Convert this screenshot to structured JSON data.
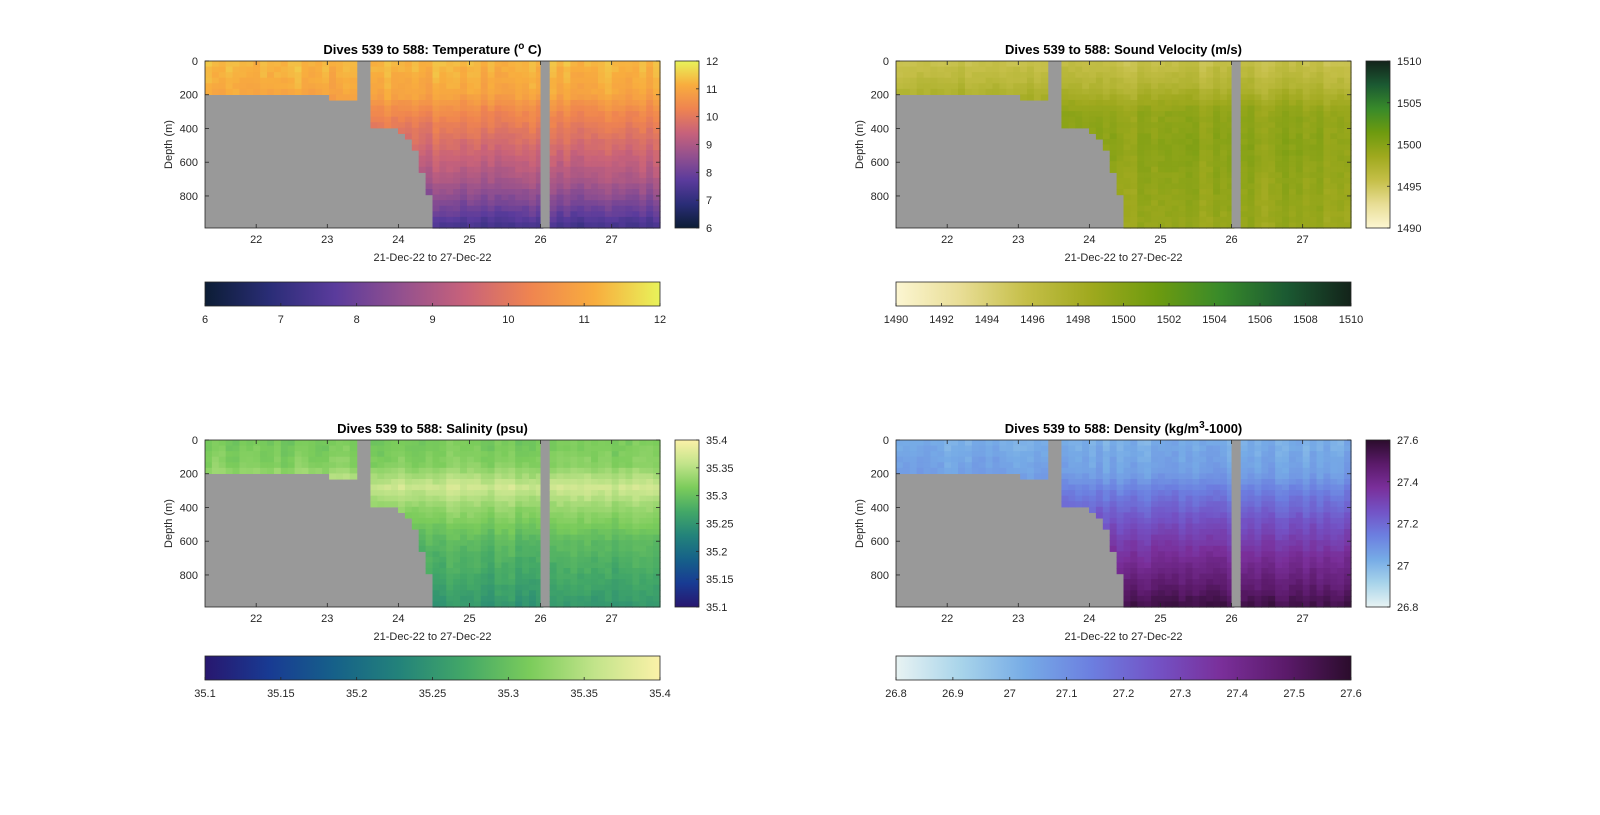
{
  "chart_data": [
    {
      "type": "heatmap",
      "id": "temp",
      "title": "Dives 539 to 588: Temperature (",
      "title_unit_sup": "o",
      "title_tail": " C)",
      "xlabel": "21-Dec-22 to 27-Dec-22",
      "ylabel": "Depth (m)",
      "x_ticks": [
        "22",
        "23",
        "24",
        "25",
        "26",
        "27"
      ],
      "x_tick_values": [
        22,
        23,
        24,
        25,
        26,
        27
      ],
      "xlim": [
        21.28,
        27.68
      ],
      "y_ticks": [
        "0",
        "200",
        "400",
        "600",
        "800"
      ],
      "y_tick_values": [
        0,
        200,
        400,
        600,
        800
      ],
      "ylim": [
        0,
        990
      ],
      "clim": [
        6,
        12
      ],
      "side_cbar_ticks": [
        "12",
        "11",
        "10",
        "9",
        "8",
        "7",
        "6"
      ],
      "side_cbar_values": [
        12,
        11,
        10,
        9,
        8,
        7,
        6
      ],
      "bottom_cbar_ticks": [
        "6",
        "7",
        "8",
        "9",
        "10",
        "11",
        "12"
      ],
      "bottom_cbar_values": [
        6,
        7,
        8,
        9,
        10,
        11,
        12
      ],
      "colormap": [
        "#0c1d35",
        "#2a2d77",
        "#5a3b9c",
        "#92508f",
        "#c8627a",
        "#ef8450",
        "#f8ad3e",
        "#e8f35a"
      ],
      "profile": [
        [
          0,
          11.3
        ],
        [
          200,
          11.0
        ],
        [
          300,
          10.4
        ],
        [
          500,
          9.7
        ],
        [
          700,
          9.0
        ],
        [
          850,
          8.2
        ],
        [
          990,
          7.3
        ]
      ]
    },
    {
      "type": "heatmap",
      "id": "sv",
      "title": "Dives 539 to 588: Sound Velocity (m/s)",
      "xlabel": "21-Dec-22 to 27-Dec-22",
      "ylabel": "Depth (m)",
      "x_ticks": [
        "22",
        "23",
        "24",
        "25",
        "26",
        "27"
      ],
      "x_tick_values": [
        22,
        23,
        24,
        25,
        26,
        27
      ],
      "xlim": [
        21.28,
        27.68
      ],
      "y_ticks": [
        "0",
        "200",
        "400",
        "600",
        "800"
      ],
      "y_tick_values": [
        0,
        200,
        400,
        600,
        800
      ],
      "ylim": [
        0,
        990
      ],
      "clim": [
        1490,
        1510
      ],
      "side_cbar_ticks": [
        "1510",
        "1505",
        "1500",
        "1495",
        "1490"
      ],
      "side_cbar_values": [
        1510,
        1505,
        1500,
        1495,
        1490
      ],
      "bottom_cbar_ticks": [
        "1490",
        "1492",
        "1494",
        "1496",
        "1498",
        "1500",
        "1502",
        "1504",
        "1506",
        "1508",
        "1510"
      ],
      "bottom_cbar_values": [
        1490,
        1492,
        1494,
        1496,
        1498,
        1500,
        1502,
        1504,
        1506,
        1508,
        1510
      ],
      "colormap": [
        "#fcf6d2",
        "#e8dd95",
        "#c5bf48",
        "#9fa91e",
        "#6e9b0f",
        "#388a2a",
        "#1b5a32",
        "#13231a"
      ],
      "profile": [
        [
          0,
          1495.5
        ],
        [
          150,
          1497.0
        ],
        [
          300,
          1499.2
        ],
        [
          500,
          1499.6
        ],
        [
          700,
          1499.2
        ],
        [
          990,
          1498.8
        ]
      ]
    },
    {
      "type": "heatmap",
      "id": "sal",
      "title": "Dives 539 to 588: Salinity (psu)",
      "xlabel": "21-Dec-22 to 27-Dec-22",
      "ylabel": "Depth (m)",
      "x_ticks": [
        "22",
        "23",
        "24",
        "25",
        "26",
        "27"
      ],
      "x_tick_values": [
        22,
        23,
        24,
        25,
        26,
        27
      ],
      "xlim": [
        21.28,
        27.68
      ],
      "y_ticks": [
        "0",
        "200",
        "400",
        "600",
        "800"
      ],
      "y_tick_values": [
        0,
        200,
        400,
        600,
        800
      ],
      "ylim": [
        0,
        990
      ],
      "clim": [
        35.1,
        35.4
      ],
      "side_cbar_ticks": [
        "35.4",
        "35.35",
        "35.3",
        "35.25",
        "35.2",
        "35.15",
        "35.1"
      ],
      "side_cbar_values": [
        35.4,
        35.35,
        35.3,
        35.25,
        35.2,
        35.15,
        35.1
      ],
      "bottom_cbar_ticks": [
        "35.1",
        "35.15",
        "35.2",
        "35.25",
        "35.3",
        "35.35",
        "35.4"
      ],
      "bottom_cbar_values": [
        35.1,
        35.15,
        35.2,
        35.25,
        35.3,
        35.35,
        35.4
      ],
      "colormap": [
        "#28176f",
        "#183b93",
        "#166189",
        "#23837a",
        "#43a867",
        "#7bcc5b",
        "#c2e48a",
        "#fbf1a8"
      ],
      "profile": [
        [
          0,
          35.31
        ],
        [
          150,
          35.32
        ],
        [
          280,
          35.365
        ],
        [
          400,
          35.33
        ],
        [
          600,
          35.29
        ],
        [
          800,
          35.27
        ],
        [
          990,
          35.25
        ]
      ]
    },
    {
      "type": "heatmap",
      "id": "dens",
      "title": "Dives 539 to 588: Density (kg/m",
      "title_unit_sup": "3",
      "title_tail": "-1000)",
      "xlabel": "21-Dec-22 to 27-Dec-22",
      "ylabel": "Depth (m)",
      "x_ticks": [
        "22",
        "23",
        "24",
        "25",
        "26",
        "27"
      ],
      "x_tick_values": [
        22,
        23,
        24,
        25,
        26,
        27
      ],
      "xlim": [
        21.28,
        27.68
      ],
      "y_ticks": [
        "0",
        "200",
        "400",
        "600",
        "800"
      ],
      "y_tick_values": [
        0,
        200,
        400,
        600,
        800
      ],
      "ylim": [
        0,
        990
      ],
      "clim": [
        26.8,
        27.6
      ],
      "side_cbar_ticks": [
        "27.6",
        "27.4",
        "27.2",
        "27",
        "26.8"
      ],
      "side_cbar_values": [
        27.6,
        27.4,
        27.2,
        27.0,
        26.8
      ],
      "bottom_cbar_ticks": [
        "26.8",
        "26.9",
        "27",
        "27.1",
        "27.2",
        "27.3",
        "27.4",
        "27.5",
        "27.6"
      ],
      "bottom_cbar_values": [
        26.8,
        26.9,
        27.0,
        27.1,
        27.2,
        27.3,
        27.4,
        27.5,
        27.6
      ],
      "colormap": [
        "#e8f3f3",
        "#a8d4ea",
        "#76abe6",
        "#6c7fe0",
        "#7353c6",
        "#7a2f9a",
        "#5b1a6a",
        "#2b0c2c"
      ],
      "profile": [
        [
          0,
          27.02
        ],
        [
          200,
          27.06
        ],
        [
          300,
          27.14
        ],
        [
          500,
          27.27
        ],
        [
          700,
          27.38
        ],
        [
          850,
          27.46
        ],
        [
          990,
          27.55
        ]
      ]
    }
  ]
}
